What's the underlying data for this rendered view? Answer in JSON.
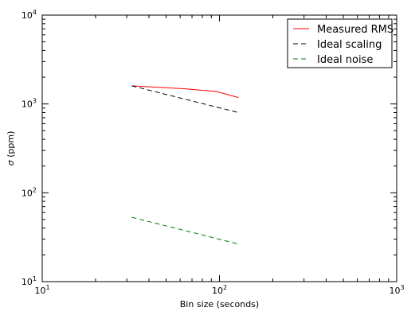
{
  "chart_data": {
    "type": "line",
    "xlabel": "Bin size (seconds)",
    "ylabel_symbol": "σ",
    "ylabel": " (ppm)",
    "xscale": "log",
    "yscale": "log",
    "xlim": [
      10,
      1000
    ],
    "ylim": [
      10,
      10000
    ],
    "xticks": [
      {
        "value": 10,
        "base": "10",
        "exp": "1"
      },
      {
        "value": 100,
        "base": "10",
        "exp": "2"
      },
      {
        "value": 1000,
        "base": "10",
        "exp": "3"
      }
    ],
    "yticks": [
      {
        "value": 10,
        "base": "10",
        "exp": "1"
      },
      {
        "value": 100,
        "base": "10",
        "exp": "2"
      },
      {
        "value": 1000,
        "base": "10",
        "exp": "3"
      },
      {
        "value": 10000,
        "base": "10",
        "exp": "4"
      }
    ],
    "grid": false,
    "legend_position": "top-right",
    "series": [
      {
        "name": "Measured RMS",
        "color": "#ff0000",
        "style": "solid",
        "x": [
          32,
          64,
          96,
          128
        ],
        "y": [
          1600,
          1480,
          1380,
          1180
        ]
      },
      {
        "name": "Ideal scaling",
        "color": "#000000",
        "style": "dashed",
        "x": [
          32,
          64,
          96,
          128
        ],
        "y": [
          1600,
          1131,
          924,
          800
        ]
      },
      {
        "name": "Ideal noise",
        "color": "#008000",
        "style": "dashed",
        "x": [
          32,
          64,
          96,
          128
        ],
        "y": [
          53,
          37.5,
          30.6,
          26.5
        ]
      }
    ]
  }
}
